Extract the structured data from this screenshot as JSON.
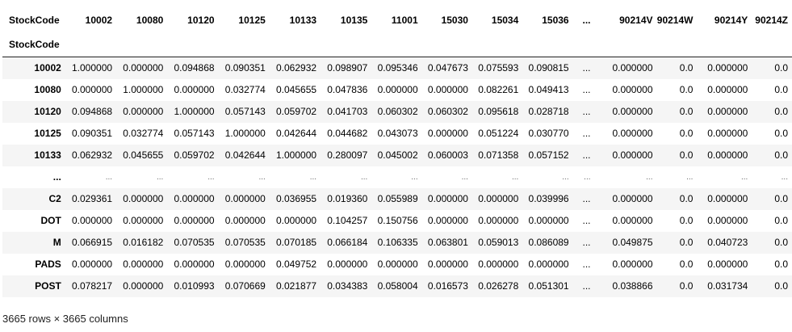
{
  "table": {
    "index_name": "StockCode",
    "columns": [
      "10002",
      "10080",
      "10120",
      "10125",
      "10133",
      "10135",
      "11001",
      "15030",
      "15034",
      "15036",
      "...",
      "90214V",
      "90214W",
      "90214Y",
      "90214Z"
    ],
    "rows": [
      {
        "index": "10002",
        "values": [
          "1.000000",
          "0.000000",
          "0.094868",
          "0.090351",
          "0.062932",
          "0.098907",
          "0.095346",
          "0.047673",
          "0.075593",
          "0.090815",
          "...",
          "0.000000",
          "0.0",
          "0.000000",
          "0.0"
        ]
      },
      {
        "index": "10080",
        "values": [
          "0.000000",
          "1.000000",
          "0.000000",
          "0.032774",
          "0.045655",
          "0.047836",
          "0.000000",
          "0.000000",
          "0.082261",
          "0.049413",
          "...",
          "0.000000",
          "0.0",
          "0.000000",
          "0.0"
        ]
      },
      {
        "index": "10120",
        "values": [
          "0.094868",
          "0.000000",
          "1.000000",
          "0.057143",
          "0.059702",
          "0.041703",
          "0.060302",
          "0.060302",
          "0.095618",
          "0.028718",
          "...",
          "0.000000",
          "0.0",
          "0.000000",
          "0.0"
        ]
      },
      {
        "index": "10125",
        "values": [
          "0.090351",
          "0.032774",
          "0.057143",
          "1.000000",
          "0.042644",
          "0.044682",
          "0.043073",
          "0.000000",
          "0.051224",
          "0.030770",
          "...",
          "0.000000",
          "0.0",
          "0.000000",
          "0.0"
        ]
      },
      {
        "index": "10133",
        "values": [
          "0.062932",
          "0.045655",
          "0.059702",
          "0.042644",
          "1.000000",
          "0.280097",
          "0.045002",
          "0.060003",
          "0.071358",
          "0.057152",
          "...",
          "0.000000",
          "0.0",
          "0.000000",
          "0.0"
        ]
      },
      {
        "index": "...",
        "values": [
          "...",
          "...",
          "...",
          "...",
          "...",
          "...",
          "...",
          "...",
          "...",
          "...",
          "...",
          "...",
          "...",
          "...",
          "..."
        ]
      },
      {
        "index": "C2",
        "values": [
          "0.029361",
          "0.000000",
          "0.000000",
          "0.000000",
          "0.036955",
          "0.019360",
          "0.055989",
          "0.000000",
          "0.000000",
          "0.039996",
          "...",
          "0.000000",
          "0.0",
          "0.000000",
          "0.0"
        ]
      },
      {
        "index": "DOT",
        "values": [
          "0.000000",
          "0.000000",
          "0.000000",
          "0.000000",
          "0.000000",
          "0.104257",
          "0.150756",
          "0.000000",
          "0.000000",
          "0.000000",
          "...",
          "0.000000",
          "0.0",
          "0.000000",
          "0.0"
        ]
      },
      {
        "index": "M",
        "values": [
          "0.066915",
          "0.016182",
          "0.070535",
          "0.070535",
          "0.070185",
          "0.066184",
          "0.106335",
          "0.063801",
          "0.059013",
          "0.086089",
          "...",
          "0.049875",
          "0.0",
          "0.040723",
          "0.0"
        ]
      },
      {
        "index": "PADS",
        "values": [
          "0.000000",
          "0.000000",
          "0.000000",
          "0.000000",
          "0.049752",
          "0.000000",
          "0.000000",
          "0.000000",
          "0.000000",
          "0.000000",
          "...",
          "0.000000",
          "0.0",
          "0.000000",
          "0.0"
        ]
      },
      {
        "index": "POST",
        "values": [
          "0.078217",
          "0.000000",
          "0.010993",
          "0.070669",
          "0.021877",
          "0.034383",
          "0.058004",
          "0.016573",
          "0.026278",
          "0.051301",
          "...",
          "0.038866",
          "0.0",
          "0.031734",
          "0.0"
        ]
      }
    ],
    "shape_text": "3665 rows × 3665 columns"
  }
}
